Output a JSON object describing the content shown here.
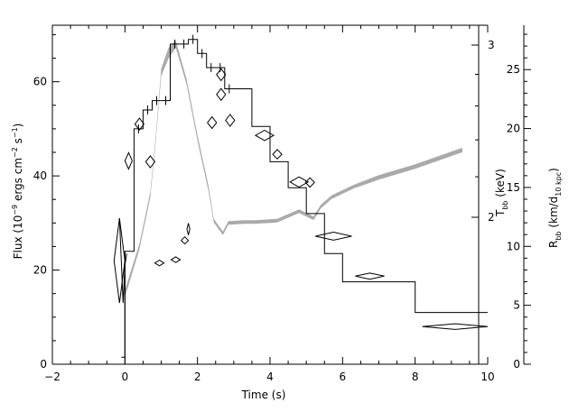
{
  "chart_data": {
    "type": "line",
    "title": "",
    "xlabel": "Time (s)",
    "ylabel": "Flux (10⁻⁹ ergs cm⁻² s⁻¹)",
    "ylabel_parts": {
      "prefix": "Flux (10",
      "exp1": "−9",
      "mid1": " ergs cm",
      "exp2": "−2",
      "mid2": " s",
      "exp3": "−1",
      "suffix": ")"
    },
    "xlim": [
      -2,
      10
    ],
    "ylim": [
      0,
      72
    ],
    "x_ticks": [
      -2,
      0,
      2,
      4,
      6,
      8,
      10
    ],
    "x_tick_labels": [
      "−2",
      "0",
      "2",
      "4",
      "6",
      "8",
      "10"
    ],
    "y_ticks": [
      0,
      20,
      40,
      60
    ],
    "y_tick_labels": [
      "0",
      "20",
      "40",
      "60"
    ],
    "grid": false,
    "right_axes": {
      "temperature": {
        "label": "T_bb (keV)",
        "label_parts": {
          "main": "T",
          "sub": "bb",
          "suffix": " (keV)"
        },
        "scale": "log",
        "ticks": [
          2,
          3
        ],
        "tick_labels": [
          "2",
          "3"
        ]
      },
      "radius": {
        "label": "R_bb (km/d_10 kpc)",
        "label_parts": {
          "main": "R",
          "sub": "bb",
          "mid": " (km/d",
          "sub2": "10 kpc",
          "suffix": ")"
        },
        "ylim": [
          0,
          28
        ],
        "ticks": [
          0,
          5,
          10,
          15,
          20,
          25
        ],
        "tick_labels": [
          "0",
          "5",
          "10",
          "15",
          "20",
          "25"
        ]
      }
    },
    "series": [
      {
        "style": "histogram",
        "color": "#000000",
        "bins": [
          {
            "x0": -0.1,
            "x1": 0.0,
            "y": 1.5
          },
          {
            "x0": 0.0,
            "x1": 0.25,
            "y": 24
          },
          {
            "x0": 0.25,
            "x1": 0.5,
            "y": 50
          },
          {
            "x0": 0.5,
            "x1": 0.75,
            "y": 54
          },
          {
            "x0": 0.75,
            "x1": 1.0,
            "y": 56
          },
          {
            "x0": 1.0,
            "x1": 1.25,
            "y": 56
          },
          {
            "x0": 1.25,
            "x1": 1.5,
            "y": 68
          },
          {
            "x0": 1.5,
            "x1": 1.75,
            "y": 68
          },
          {
            "x0": 1.75,
            "x1": 2.0,
            "y": 69
          },
          {
            "x0": 2.0,
            "x1": 2.25,
            "y": 66
          },
          {
            "x0": 2.25,
            "x1": 2.5,
            "y": 63
          },
          {
            "x0": 2.5,
            "x1": 2.75,
            "y": 63
          },
          {
            "x0": 2.75,
            "x1": 3.0,
            "y": 58.5
          },
          {
            "x0": 3.0,
            "x1": 3.5,
            "y": 58.5
          },
          {
            "x0": 3.5,
            "x1": 4.0,
            "y": 50.5
          },
          {
            "x0": 4.0,
            "x1": 4.5,
            "y": 43
          },
          {
            "x0": 4.5,
            "x1": 5.0,
            "y": 37.5
          },
          {
            "x0": 5.0,
            "x1": 5.5,
            "y": 32
          },
          {
            "x0": 5.5,
            "x1": 6.0,
            "y": 23.5
          },
          {
            "x0": 6.0,
            "x1": 7.0,
            "y": 17.5
          },
          {
            "x0": 7.0,
            "x1": 8.0,
            "y": 17.5
          },
          {
            "x0": 8.0,
            "x1": 10.0,
            "y": 11
          }
        ]
      },
      {
        "style": "diamonds",
        "color": "#000000",
        "points": [
          {
            "x": -0.15,
            "y": 22,
            "w": 0.3,
            "h": 18
          },
          {
            "x": 0.1,
            "y": 43.2,
            "w": 0.2,
            "h": 3.5
          },
          {
            "x": 0.4,
            "y": 51,
            "w": 0.25,
            "h": 2.5
          },
          {
            "x": 0.7,
            "y": 43,
            "w": 0.25,
            "h": 2.5
          },
          {
            "x": 0.95,
            "y": 21.5,
            "w": 0.25,
            "h": 1.2
          },
          {
            "x": 1.4,
            "y": 22.2,
            "w": 0.25,
            "h": 1.2
          },
          {
            "x": 1.65,
            "y": 26.3,
            "w": 0.2,
            "h": 1.5
          },
          {
            "x": 1.75,
            "y": 28.7,
            "w": 0.08,
            "h": 2.5
          },
          {
            "x": 2.4,
            "y": 51.3,
            "w": 0.25,
            "h": 2.5
          },
          {
            "x": 2.65,
            "y": 57.3,
            "w": 0.25,
            "h": 2.5
          },
          {
            "x": 2.9,
            "y": 51.8,
            "w": 0.25,
            "h": 2.5
          },
          {
            "x": 2.65,
            "y": 61.5,
            "w": 0.25,
            "h": 2.5
          },
          {
            "x": 3.85,
            "y": 48.6,
            "w": 0.5,
            "h": 2.2
          },
          {
            "x": 4.2,
            "y": 44.6,
            "w": 0.25,
            "h": 2.0
          },
          {
            "x": 4.8,
            "y": 38.7,
            "w": 0.5,
            "h": 2.2
          },
          {
            "x": 5.1,
            "y": 38.6,
            "w": 0.25,
            "h": 2.0
          },
          {
            "x": 5.75,
            "y": 27.2,
            "w": 1.0,
            "h": 1.7
          },
          {
            "x": 6.75,
            "y": 18.7,
            "w": 0.8,
            "h": 1.3
          },
          {
            "x": 9.1,
            "y": 8.0,
            "w": 1.8,
            "h": 1.2
          }
        ]
      },
      {
        "style": "gray-band",
        "color": "#aaaaaa",
        "points": [
          {
            "x": 0.0,
            "y": 15.0,
            "w": 4
          },
          {
            "x": 0.4,
            "y": 25.0,
            "w": 3
          },
          {
            "x": 0.7,
            "y": 36.0,
            "w": 3
          },
          {
            "x": 0.85,
            "y": 48.0,
            "w": 3
          },
          {
            "x": 1.0,
            "y": 62.0,
            "w": 4
          },
          {
            "x": 1.2,
            "y": 66.0,
            "w": 6
          },
          {
            "x": 1.4,
            "y": 68.0,
            "w": 4
          },
          {
            "x": 1.7,
            "y": 60.0,
            "w": 3
          },
          {
            "x": 2.0,
            "y": 48.0,
            "w": 3
          },
          {
            "x": 2.3,
            "y": 37.5,
            "w": 3
          },
          {
            "x": 2.45,
            "y": 30.5,
            "w": 2
          },
          {
            "x": 2.7,
            "y": 27.8,
            "w": 2
          },
          {
            "x": 2.85,
            "y": 30.0,
            "w": 2
          },
          {
            "x": 3.3,
            "y": 30.2,
            "w": 2
          },
          {
            "x": 3.6,
            "y": 30.2,
            "w": 2
          },
          {
            "x": 4.2,
            "y": 30.5,
            "w": 2
          },
          {
            "x": 4.8,
            "y": 32.5,
            "w": 2
          },
          {
            "x": 5.2,
            "y": 31.0,
            "w": 2
          },
          {
            "x": 5.4,
            "y": 33.5,
            "w": 2
          },
          {
            "x": 5.7,
            "y": 35.5,
            "w": 2
          },
          {
            "x": 6.3,
            "y": 37.7,
            "w": 2
          },
          {
            "x": 7.0,
            "y": 39.7,
            "w": 2.5
          },
          {
            "x": 8.0,
            "y": 42.0,
            "w": 2.5
          },
          {
            "x": 9.3,
            "y": 45.5,
            "w": 2.5
          }
        ]
      },
      {
        "style": "thin-line",
        "color": "#000000",
        "points": [
          {
            "x": -0.15,
            "y": 31
          },
          {
            "x": -0.1,
            "y": 22
          },
          {
            "x": -0.05,
            "y": 13
          },
          {
            "x": 0.0,
            "y": 21
          },
          {
            "x": 0.05,
            "y": 23.5
          }
        ]
      }
    ]
  }
}
